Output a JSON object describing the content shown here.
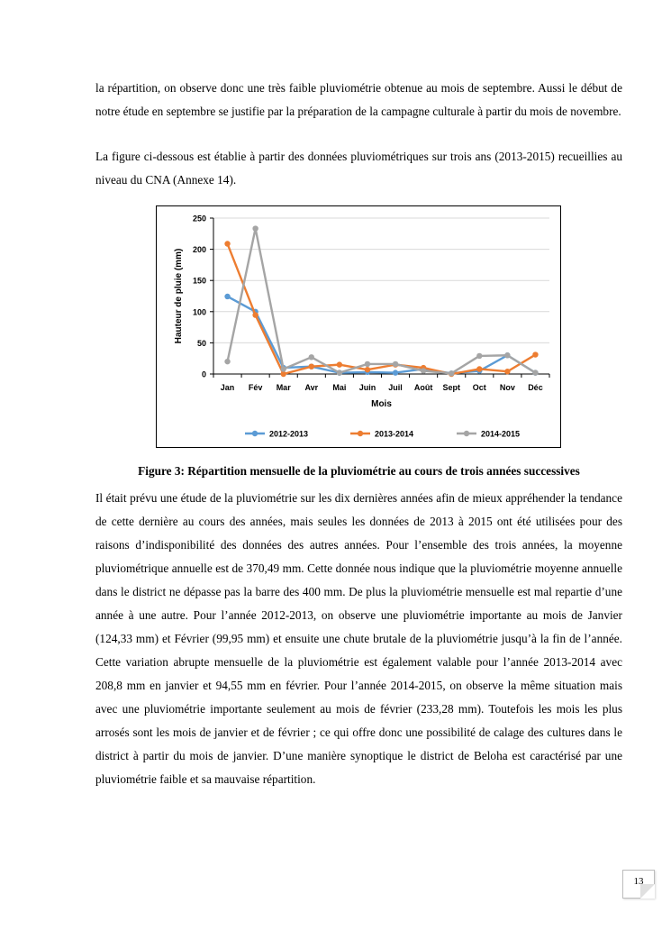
{
  "paragraphs": {
    "p1": "la répartition, on observe donc une très faible pluviométrie obtenue au mois de septembre. Aussi le début de notre étude en septembre se justifie par la préparation de la campagne culturale à partir du mois de novembre.",
    "p2": "La figure ci-dessous est établie à partir des données pluviométriques sur trois ans (2013-2015) recueillies au niveau du CNA (Annexe 14).",
    "p3": "Il était prévu une étude de la pluviométrie sur les dix dernières années afin de mieux appréhender la tendance de cette dernière au cours des années, mais seules les données de 2013 à 2015 ont été utilisées pour des raisons d’indisponibilité des données des autres années. Pour l’ensemble des trois années, la moyenne pluviométrique annuelle est de 370,49 mm. Cette donnée nous indique que la pluviométrie moyenne annuelle dans le district ne dépasse pas la barre des 400 mm. De plus la pluviométrie mensuelle est mal repartie d’une année à une autre. Pour l’année 2012-2013, on observe une pluviométrie importante au mois de Janvier (124,33 mm) et Février (99,95 mm) et ensuite une chute brutale de la pluviométrie jusqu’à la fin de l’année. Cette variation abrupte mensuelle de la pluviométrie est également valable pour l’année 2013-2014 avec 208,8 mm en janvier et 94,55 mm en février. Pour l’année 2014-2015, on observe la même situation mais avec une pluviométrie importante seulement au mois de février (233,28 mm). Toutefois les mois les plus arrosés sont les mois de janvier et de février ; ce qui offre donc une possibilité de calage des cultures dans le district à partir du mois de janvier. D’une manière synoptique le district de Beloha est caractérisé par une pluviométrie faible et sa mauvaise répartition."
  },
  "figure": {
    "caption": "Figure 3: Répartition mensuelle de la pluviométrie au cours de trois années successives"
  },
  "page_number": "13",
  "chart_data": {
    "type": "line",
    "categories": [
      "Jan",
      "Fév",
      "Mar",
      "Avr",
      "Mai",
      "Juin",
      "Juil",
      "Août",
      "Sept",
      "Oct",
      "Nov",
      "Déc"
    ],
    "xlabel": "Mois",
    "ylabel": "Hauteur de pluie (mm)",
    "ylim": [
      0,
      250
    ],
    "yticks": [
      0,
      50,
      100,
      150,
      200,
      250
    ],
    "grid": true,
    "legend_position": "bottom",
    "series": [
      {
        "name": "2012-2013",
        "color": "#5b9bd5",
        "values": [
          124.33,
          99.95,
          10,
          12,
          2,
          3,
          2,
          8,
          1,
          5,
          30,
          2
        ]
      },
      {
        "name": "2013-2014",
        "color": "#ed7d31",
        "values": [
          208.8,
          94.55,
          0,
          12,
          15,
          7,
          15,
          10,
          0,
          8,
          4,
          31
        ]
      },
      {
        "name": "2014-2015",
        "color": "#a5a5a5",
        "values": [
          20,
          233.28,
          8,
          27,
          2,
          16,
          16,
          5,
          1,
          29,
          30,
          2
        ]
      }
    ]
  }
}
